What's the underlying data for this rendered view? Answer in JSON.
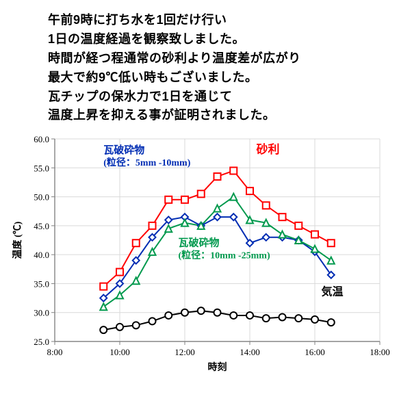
{
  "description": {
    "line1": "午前9時に打ち水を1回だけ行い",
    "line2": "1日の温度経過を観察致しました。",
    "line3": "時間が経つ程通常の砂利より温度差が広がり",
    "line4": "最大で約9℃低い時もございました。",
    "line5": "瓦チップの保水力で1日を通じて",
    "line6": "温度上昇を抑える事が証明されました。"
  },
  "chart": {
    "type": "line",
    "background_color": "#ffffff",
    "grid_color": "#d9d9d9",
    "axis_color": "#808080",
    "x_axis": {
      "label": "時刻",
      "min_h": 8,
      "max_h": 18,
      "ticks": [
        "8:00",
        "10:00",
        "12:00",
        "14:00",
        "16:00",
        "18:00"
      ],
      "label_fontsize": 14,
      "tick_fontsize": 13,
      "label_color": "#000"
    },
    "y_axis": {
      "label": "温度 (℃)",
      "min": 25,
      "max": 60,
      "step": 5,
      "ticks": [
        "25.0",
        "30.0",
        "35.0",
        "40.0",
        "45.0",
        "50.0",
        "55.0",
        "60.0"
      ],
      "label_fontsize": 14,
      "tick_fontsize": 13,
      "label_color": "#000"
    },
    "time_points_h": [
      9.5,
      10,
      10.5,
      11,
      11.5,
      12,
      12.5,
      13,
      13.5,
      14,
      14.5,
      15,
      15.5,
      16,
      16.5
    ],
    "series": {
      "gravel": {
        "label": "砂利",
        "color": "#ff0000",
        "marker": "square-open",
        "marker_size": 10,
        "line_width": 2,
        "data": [
          34.5,
          37.0,
          42.0,
          45.0,
          49.5,
          49.5,
          50.5,
          53.5,
          54.5,
          51.0,
          48.5,
          46.5,
          45.0,
          43.5,
          42.0
        ]
      },
      "tile_5_10": {
        "label": "瓦破砕物",
        "sublabel": "(粒径：5mm -10mm)",
        "color": "#002db3",
        "marker": "diamond-open",
        "marker_size": 10,
        "line_width": 2,
        "data": [
          32.5,
          35.0,
          39.0,
          43.0,
          46.0,
          46.5,
          45.0,
          46.5,
          46.5,
          42.0,
          43.0,
          43.0,
          42.5,
          40.5,
          36.5
        ]
      },
      "tile_10_25": {
        "label": "瓦破砕物",
        "sublabel": "(粒径：10mm -25mm)",
        "color": "#00994d",
        "marker": "triangle-open",
        "marker_size": 10,
        "line_width": 2,
        "data": [
          31.0,
          33.0,
          35.5,
          40.5,
          44.5,
          45.5,
          45.0,
          48.0,
          50.0,
          46.0,
          45.5,
          43.5,
          42.5,
          41.0,
          39.0
        ]
      },
      "air": {
        "label": "気温",
        "color": "#000000",
        "marker": "circle-open",
        "marker_size": 10,
        "line_width": 2,
        "data": [
          27.0,
          27.5,
          27.8,
          28.5,
          29.5,
          30.0,
          30.3,
          30.0,
          29.5,
          29.5,
          29.0,
          29.2,
          29.0,
          28.8,
          28.3
        ]
      }
    },
    "legend_labels": {
      "tile_5_10_pos": {
        "x_h": 9.5,
        "y": 57.5
      },
      "gravel_pos": {
        "x_h": 14.2,
        "y": 57.5
      },
      "tile_10_25_pos": {
        "x_h": 11.8,
        "y": 41.5
      },
      "air_pos": {
        "x_h": 16.2,
        "y": 33.0
      }
    }
  }
}
